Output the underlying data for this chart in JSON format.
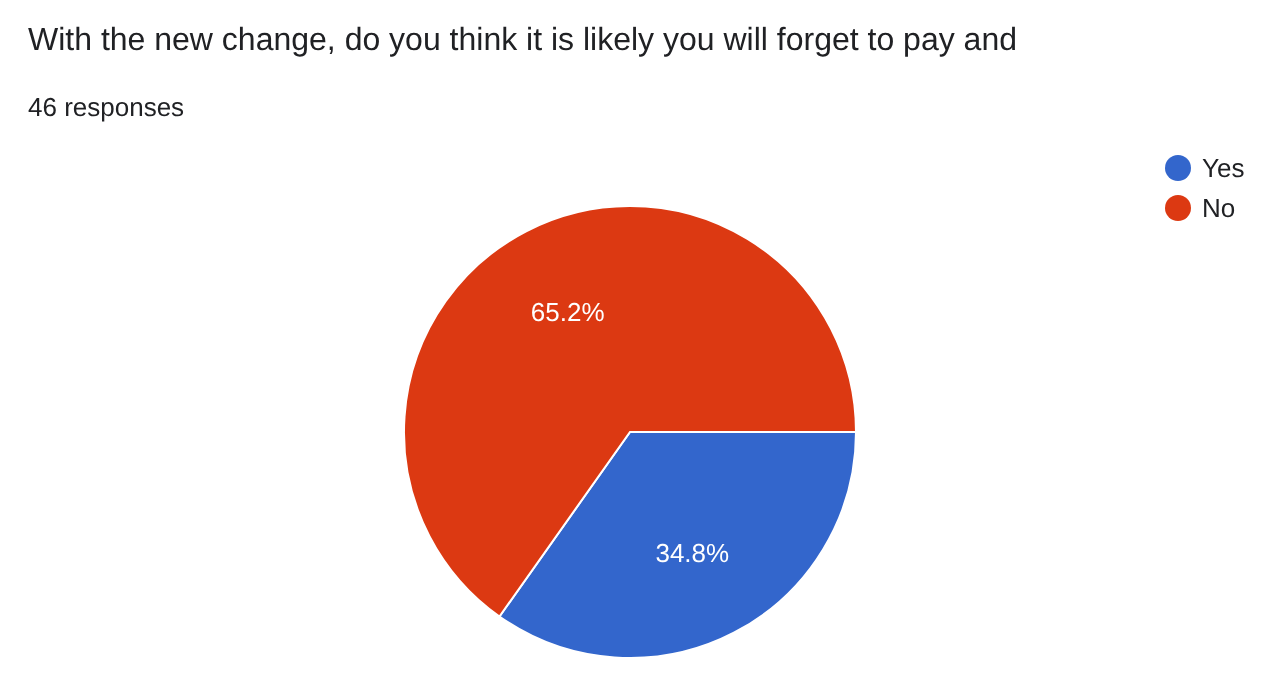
{
  "chart_data": {
    "type": "pie",
    "title": "With the new change, do you think it is likely you will forget to pay and",
    "subtitle": "46 responses",
    "categories": [
      "Yes",
      "No"
    ],
    "values": [
      34.8,
      65.2
    ],
    "colors": [
      "#3366cc",
      "#dc3912"
    ],
    "value_labels": [
      "34.8%",
      "65.2%"
    ],
    "legend": "top right"
  }
}
